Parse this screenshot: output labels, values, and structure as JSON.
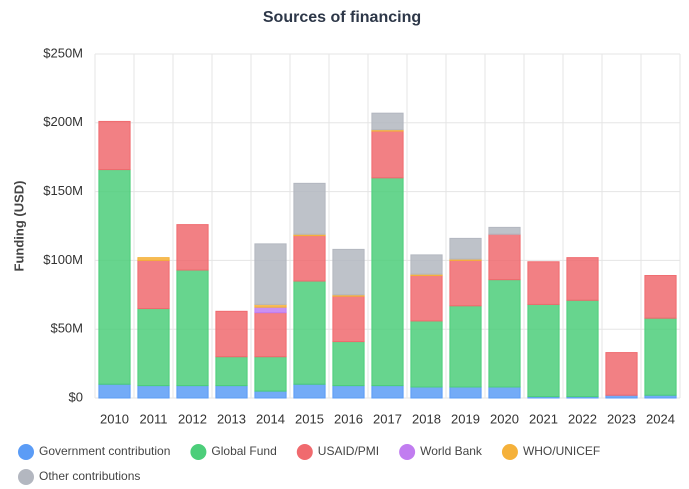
{
  "chart_data": {
    "type": "stacked_bar",
    "title": "Sources of financing",
    "y_label": "Funding (USD)",
    "categories": [
      "2010",
      "2011",
      "2012",
      "2013",
      "2014",
      "2015",
      "2016",
      "2017",
      "2018",
      "2019",
      "2020",
      "2021",
      "2022",
      "2023",
      "2024"
    ],
    "series": [
      {
        "name": "Government contribution",
        "color": "#5b9cf6",
        "values": [
          10,
          9,
          9,
          9,
          5,
          10,
          9,
          9,
          8,
          8,
          8,
          1,
          1,
          2,
          2
        ]
      },
      {
        "name": "Global Fund",
        "color": "#4cce7a",
        "values": [
          156,
          56,
          84,
          21,
          25,
          75,
          32,
          151,
          48,
          59,
          78,
          67,
          70,
          0,
          56
        ]
      },
      {
        "name": "USAID/PMI",
        "color": "#f06a6e",
        "values": [
          35,
          35,
          33,
          33,
          32,
          33,
          33,
          34,
          33,
          33,
          33,
          31,
          31,
          31,
          31
        ]
      },
      {
        "name": "World Bank",
        "color": "#c17df0",
        "values": [
          0,
          0,
          0,
          0,
          4,
          0,
          0,
          0,
          0,
          0,
          0,
          0,
          0,
          0,
          0
        ]
      },
      {
        "name": "WHO/UNICEF",
        "color": "#f5b13a",
        "values": [
          0,
          2,
          0,
          0,
          2,
          1,
          1,
          1,
          1,
          1,
          0,
          0,
          0,
          0,
          0
        ]
      },
      {
        "name": "Other contributions",
        "color": "#b3b7c0",
        "values": [
          0,
          0,
          0,
          0,
          44,
          37,
          33,
          12,
          14,
          15,
          5,
          0,
          0,
          0,
          0
        ]
      }
    ],
    "ylim": [
      0,
      250
    ],
    "yticks": [
      {
        "value": 0,
        "label": "$0"
      },
      {
        "value": 50,
        "label": "$50M"
      },
      {
        "value": 100,
        "label": "$100M"
      },
      {
        "value": 150,
        "label": "$150M"
      },
      {
        "value": 200,
        "label": "$200M"
      },
      {
        "value": 250,
        "label": "$250M"
      }
    ],
    "grid": true
  }
}
